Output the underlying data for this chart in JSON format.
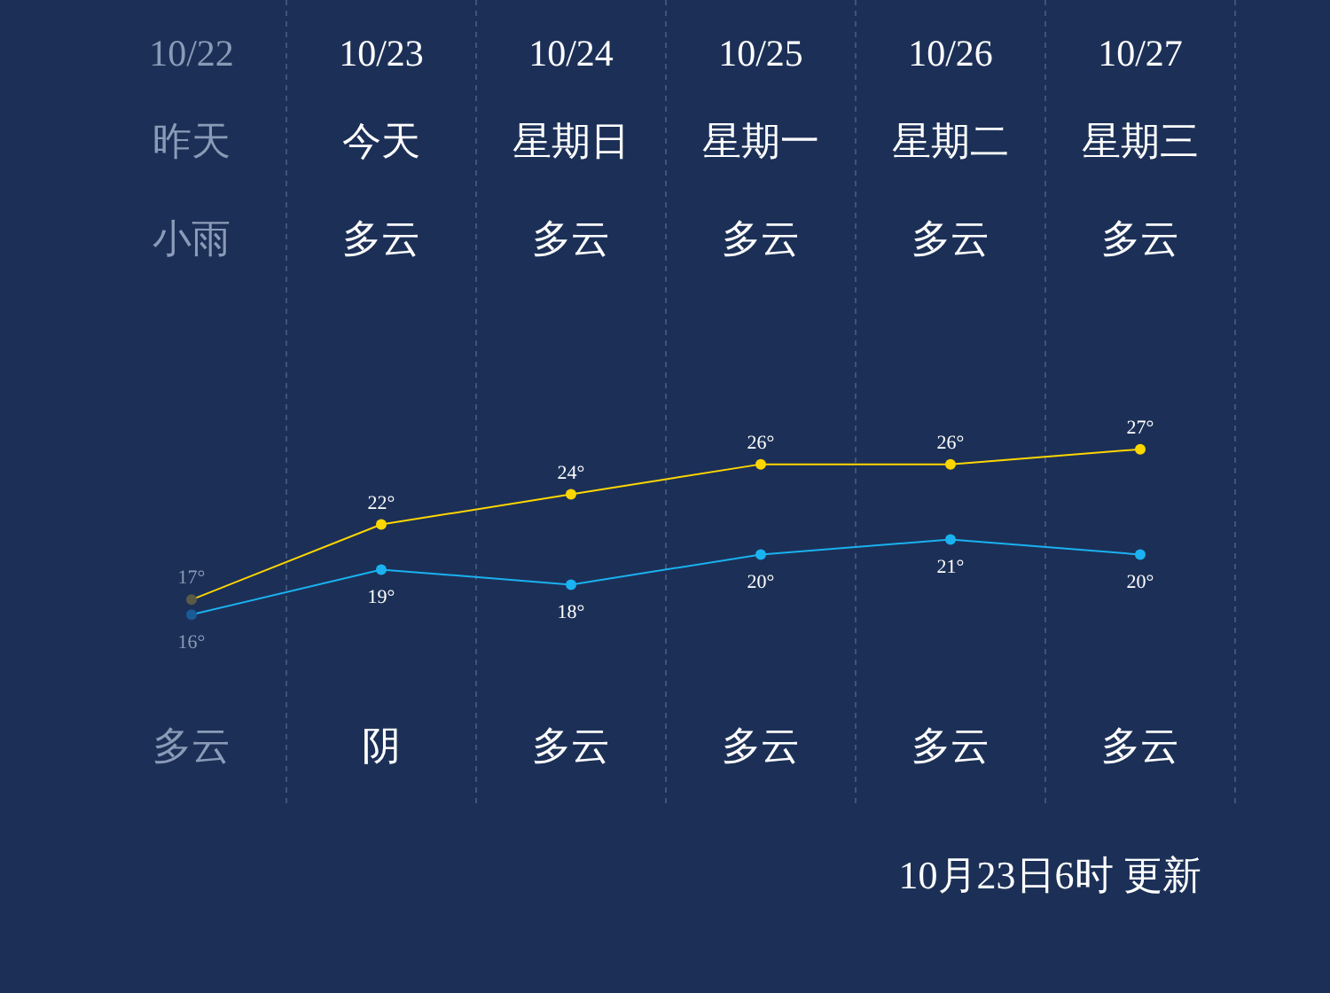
{
  "chart_data": {
    "type": "line",
    "categories": [
      "10/22",
      "10/23",
      "10/24",
      "10/25",
      "10/26",
      "10/27"
    ],
    "series": [
      {
        "color": "#ffd700",
        "colors": [
          "#5a5a46",
          "#ffd700",
          "#ffd700",
          "#ffd700",
          "#ffd700",
          "#ffd700"
        ],
        "values": [
          17,
          22,
          24,
          26,
          26,
          27
        ],
        "value_labels": [
          "17°",
          "22°",
          "24°",
          "26°",
          "26°",
          "27°"
        ]
      },
      {
        "color": "#1ab2f0",
        "colors": [
          "#1a5a95",
          "#1ab2f0",
          "#1ab2f0",
          "#1ab2f0",
          "#1ab2f0",
          "#1ab2f0"
        ],
        "values": [
          16,
          19,
          18,
          20,
          21,
          20
        ],
        "value_labels": [
          "16°",
          "19°",
          "18°",
          "20°",
          "21°",
          "20°"
        ]
      }
    ],
    "annotations": [
      "昨天",
      "今天",
      "星期日",
      "星期一",
      "星期二",
      "星期三",
      "小雨",
      "多云",
      "多云",
      "多云",
      "多云",
      "多云",
      "多云",
      "阴",
      "多云",
      "多云",
      "多云",
      "多云",
      "10月23日6时 更新"
    ],
    "marker": "circle",
    "grid": "x"
  }
}
